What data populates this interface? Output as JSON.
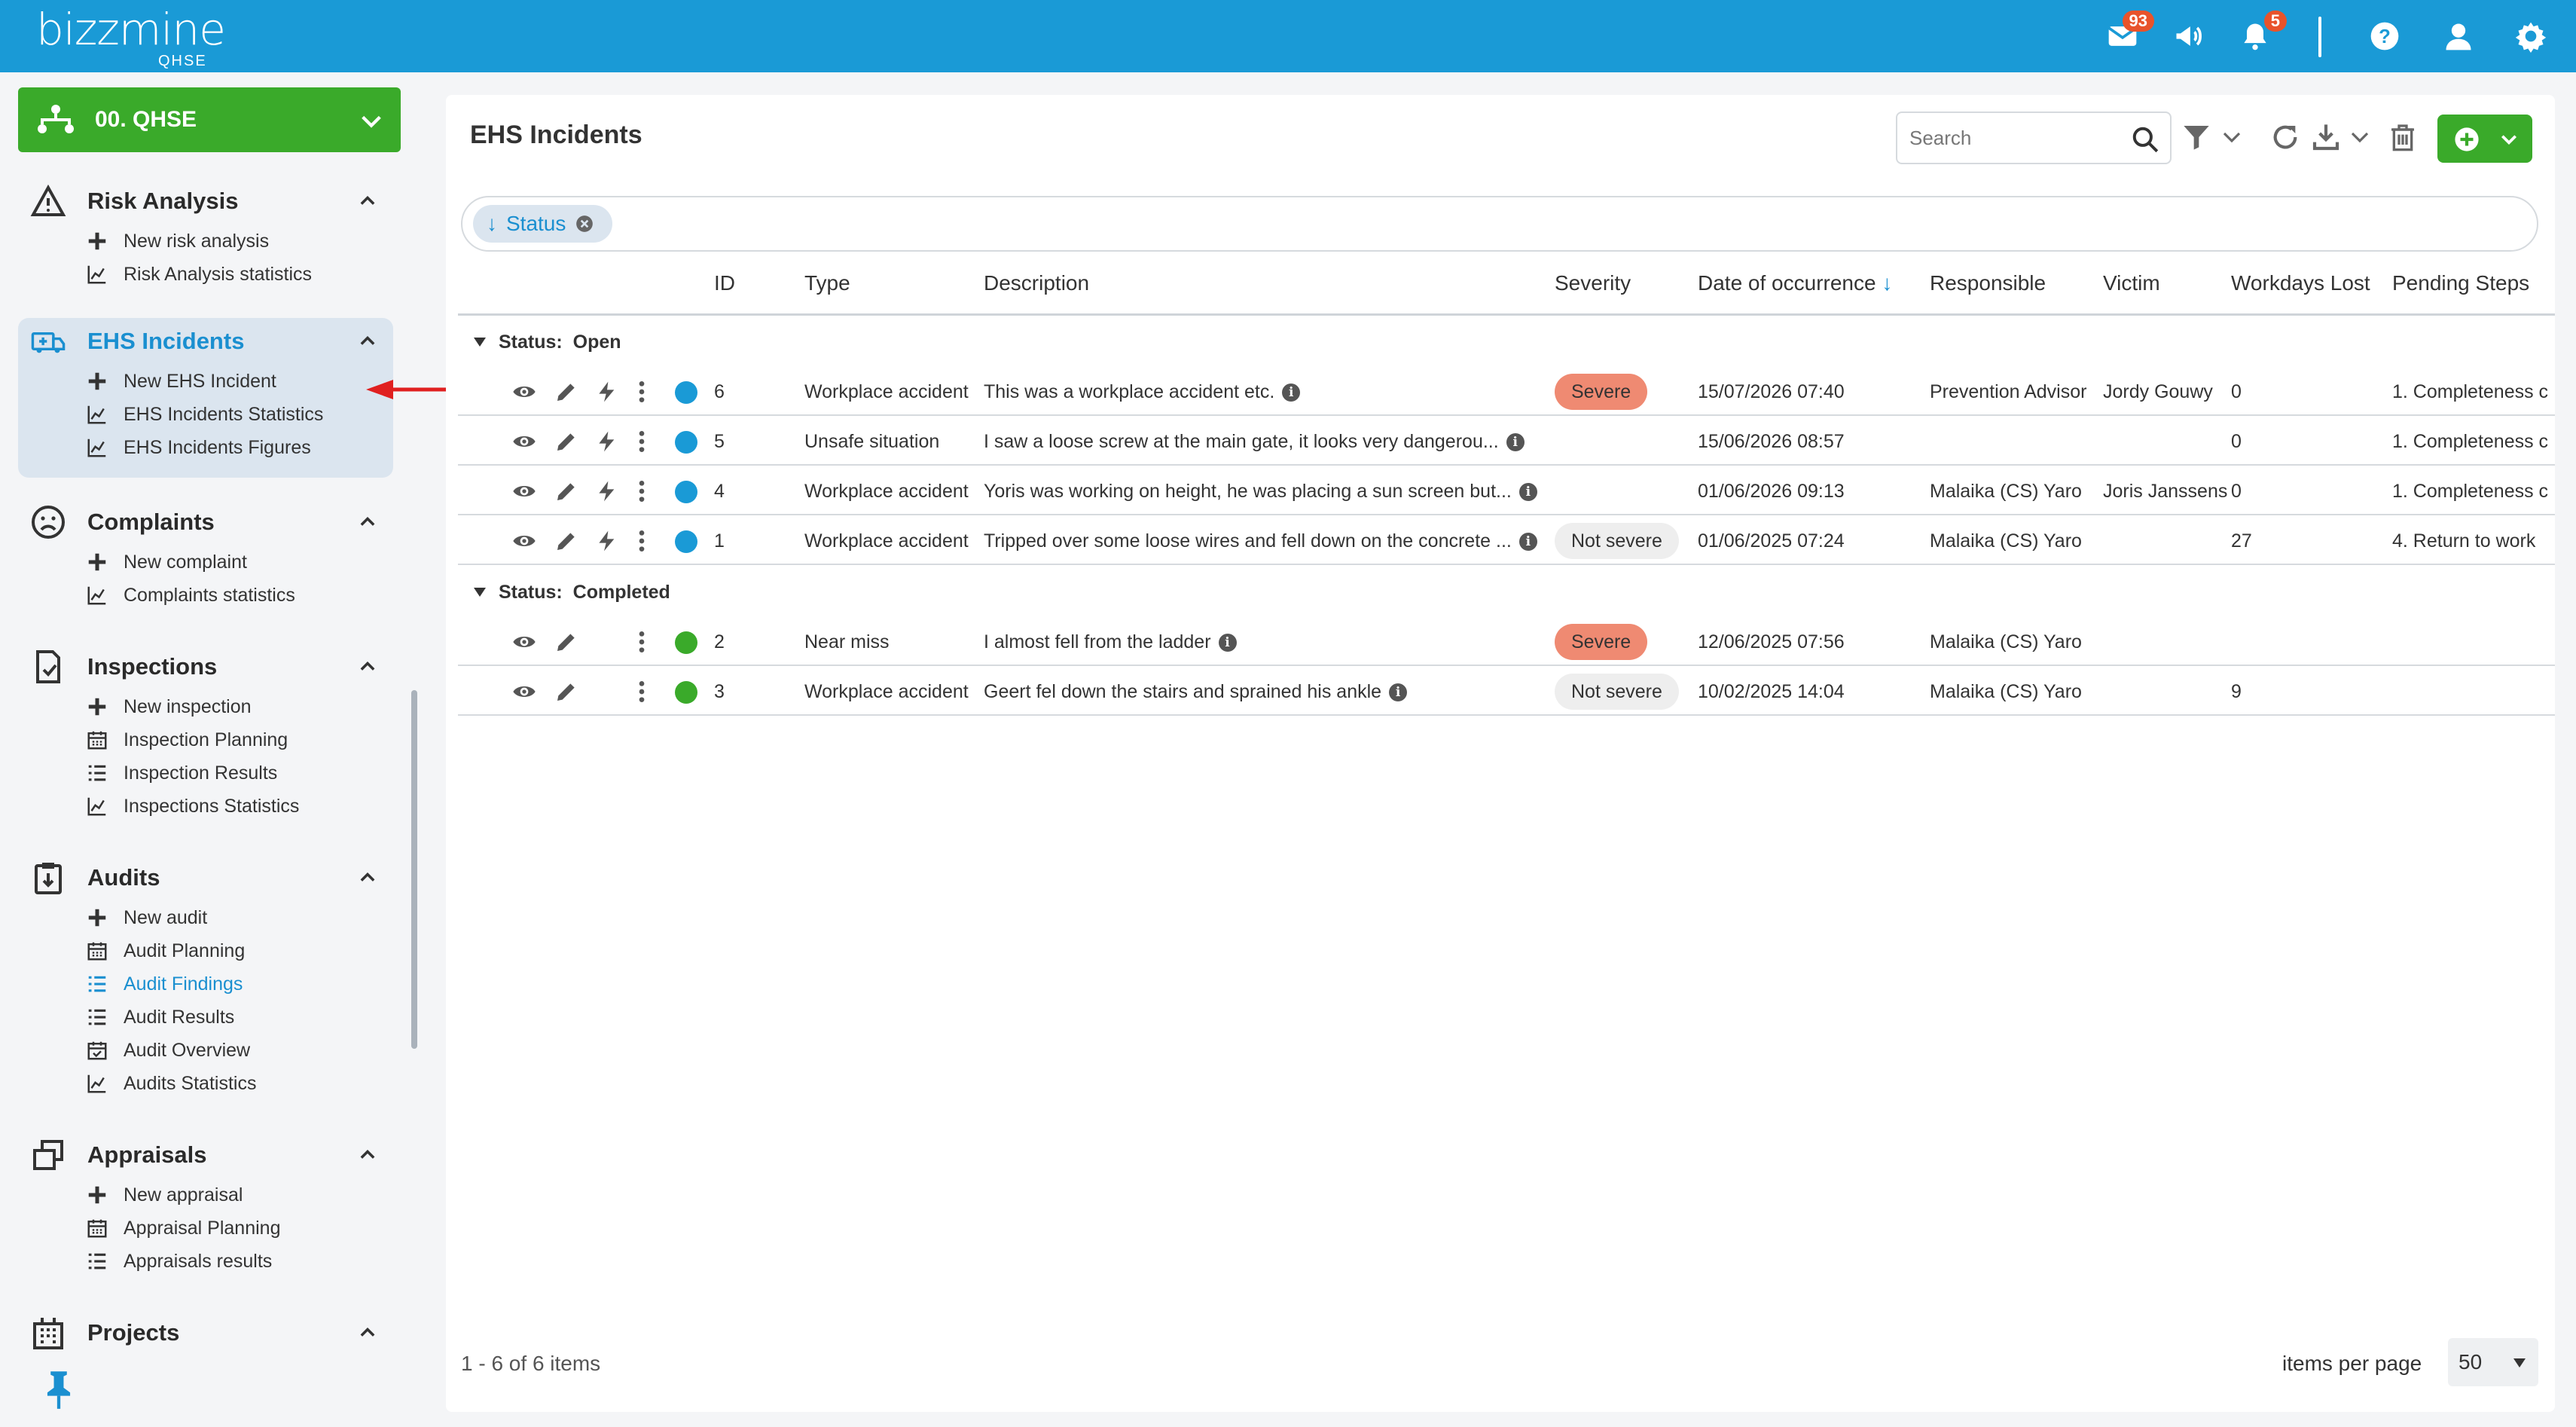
{
  "app": {
    "logo_word": "bizzmine",
    "logo_sub": "QHSE"
  },
  "topbar": {
    "mail_count": "93",
    "notification_count": "5"
  },
  "project_selector": {
    "label": "00. QHSE"
  },
  "sidebar": {
    "sections": [
      {
        "title": "Risk Analysis",
        "items": [
          "New risk analysis",
          "Risk Analysis statistics"
        ]
      },
      {
        "title": "EHS Incidents",
        "items": [
          "New EHS Incident",
          "EHS Incidents Statistics",
          "EHS Incidents Figures"
        ]
      },
      {
        "title": "Complaints",
        "items": [
          "New complaint",
          "Complaints statistics"
        ]
      },
      {
        "title": "Inspections",
        "items": [
          "New inspection",
          "Inspection Planning",
          "Inspection Results",
          "Inspections Statistics"
        ]
      },
      {
        "title": "Audits",
        "items": [
          "New audit",
          "Audit Planning",
          "Audit Findings",
          "Audit Results",
          "Audit Overview",
          "Audits Statistics"
        ]
      },
      {
        "title": "Appraisals",
        "items": [
          "New appraisal",
          "Appraisal Planning",
          "Appraisals results"
        ]
      },
      {
        "title": "Projects",
        "items": []
      }
    ]
  },
  "main": {
    "title": "EHS Incidents",
    "search_placeholder": "Search",
    "group_chip": "Status",
    "columns": [
      "ID",
      "Type",
      "Description",
      "Severity",
      "Date of occurrence",
      "Responsible",
      "Victim",
      "Workdays Lost",
      "Pending Steps"
    ],
    "groups": [
      {
        "label": "Status:",
        "value": "Open",
        "rows": [
          {
            "id": "6",
            "type": "Workplace accident",
            "description": "This was a workplace accident etc.",
            "severity": "Severe",
            "date": "15/07/2026 07:40",
            "responsible": "Prevention Advisor",
            "victim": "Jordy Gouwy",
            "workdays": "0",
            "pending": "1. Completeness c"
          },
          {
            "id": "5",
            "type": "Unsafe situation",
            "description": "I saw a loose screw at the main gate, it looks very dangerou...",
            "severity": "",
            "date": "15/06/2026 08:57",
            "responsible": "",
            "victim": "",
            "workdays": "0",
            "pending": "1. Completeness c"
          },
          {
            "id": "4",
            "type": "Workplace accident",
            "description": "Yoris was working on height, he was placing a sun screen but...",
            "severity": "",
            "date": "01/06/2026 09:13",
            "responsible": "Malaika (CS) Yaro",
            "victim": "Joris Janssens",
            "workdays": "0",
            "pending": "1. Completeness c"
          },
          {
            "id": "1",
            "type": "Workplace accident",
            "description": "Tripped over some loose wires and fell down on the concrete ...",
            "severity": "Not severe",
            "date": "01/06/2025 07:24",
            "responsible": "Malaika (CS) Yaro",
            "victim": "",
            "workdays": "27",
            "pending": "4. Return to work"
          }
        ]
      },
      {
        "label": "Status:",
        "value": "Completed",
        "rows": [
          {
            "id": "2",
            "type": "Near miss",
            "description": "I almost fell from the ladder",
            "severity": "Severe",
            "date": "12/06/2025 07:56",
            "responsible": "Malaika (CS) Yaro",
            "victim": "",
            "workdays": "",
            "pending": ""
          },
          {
            "id": "3",
            "type": "Workplace accident",
            "description": "Geert fel down the stairs and sprained his ankle",
            "severity": "Not severe",
            "date": "10/02/2025 14:04",
            "responsible": "Malaika (CS) Yaro",
            "victim": "",
            "workdays": "9",
            "pending": ""
          }
        ]
      }
    ],
    "footer": {
      "count": "1 - 6 of 6 items",
      "items_per_page_label": "items per page",
      "items_per_page_value": "50"
    }
  },
  "colors": {
    "topbar": "#1a9ad6",
    "accent_green": "#3aaa2a",
    "open_dot": "#1a9ad6",
    "completed_dot": "#3aaa2a",
    "severe": "#ef8a72"
  }
}
